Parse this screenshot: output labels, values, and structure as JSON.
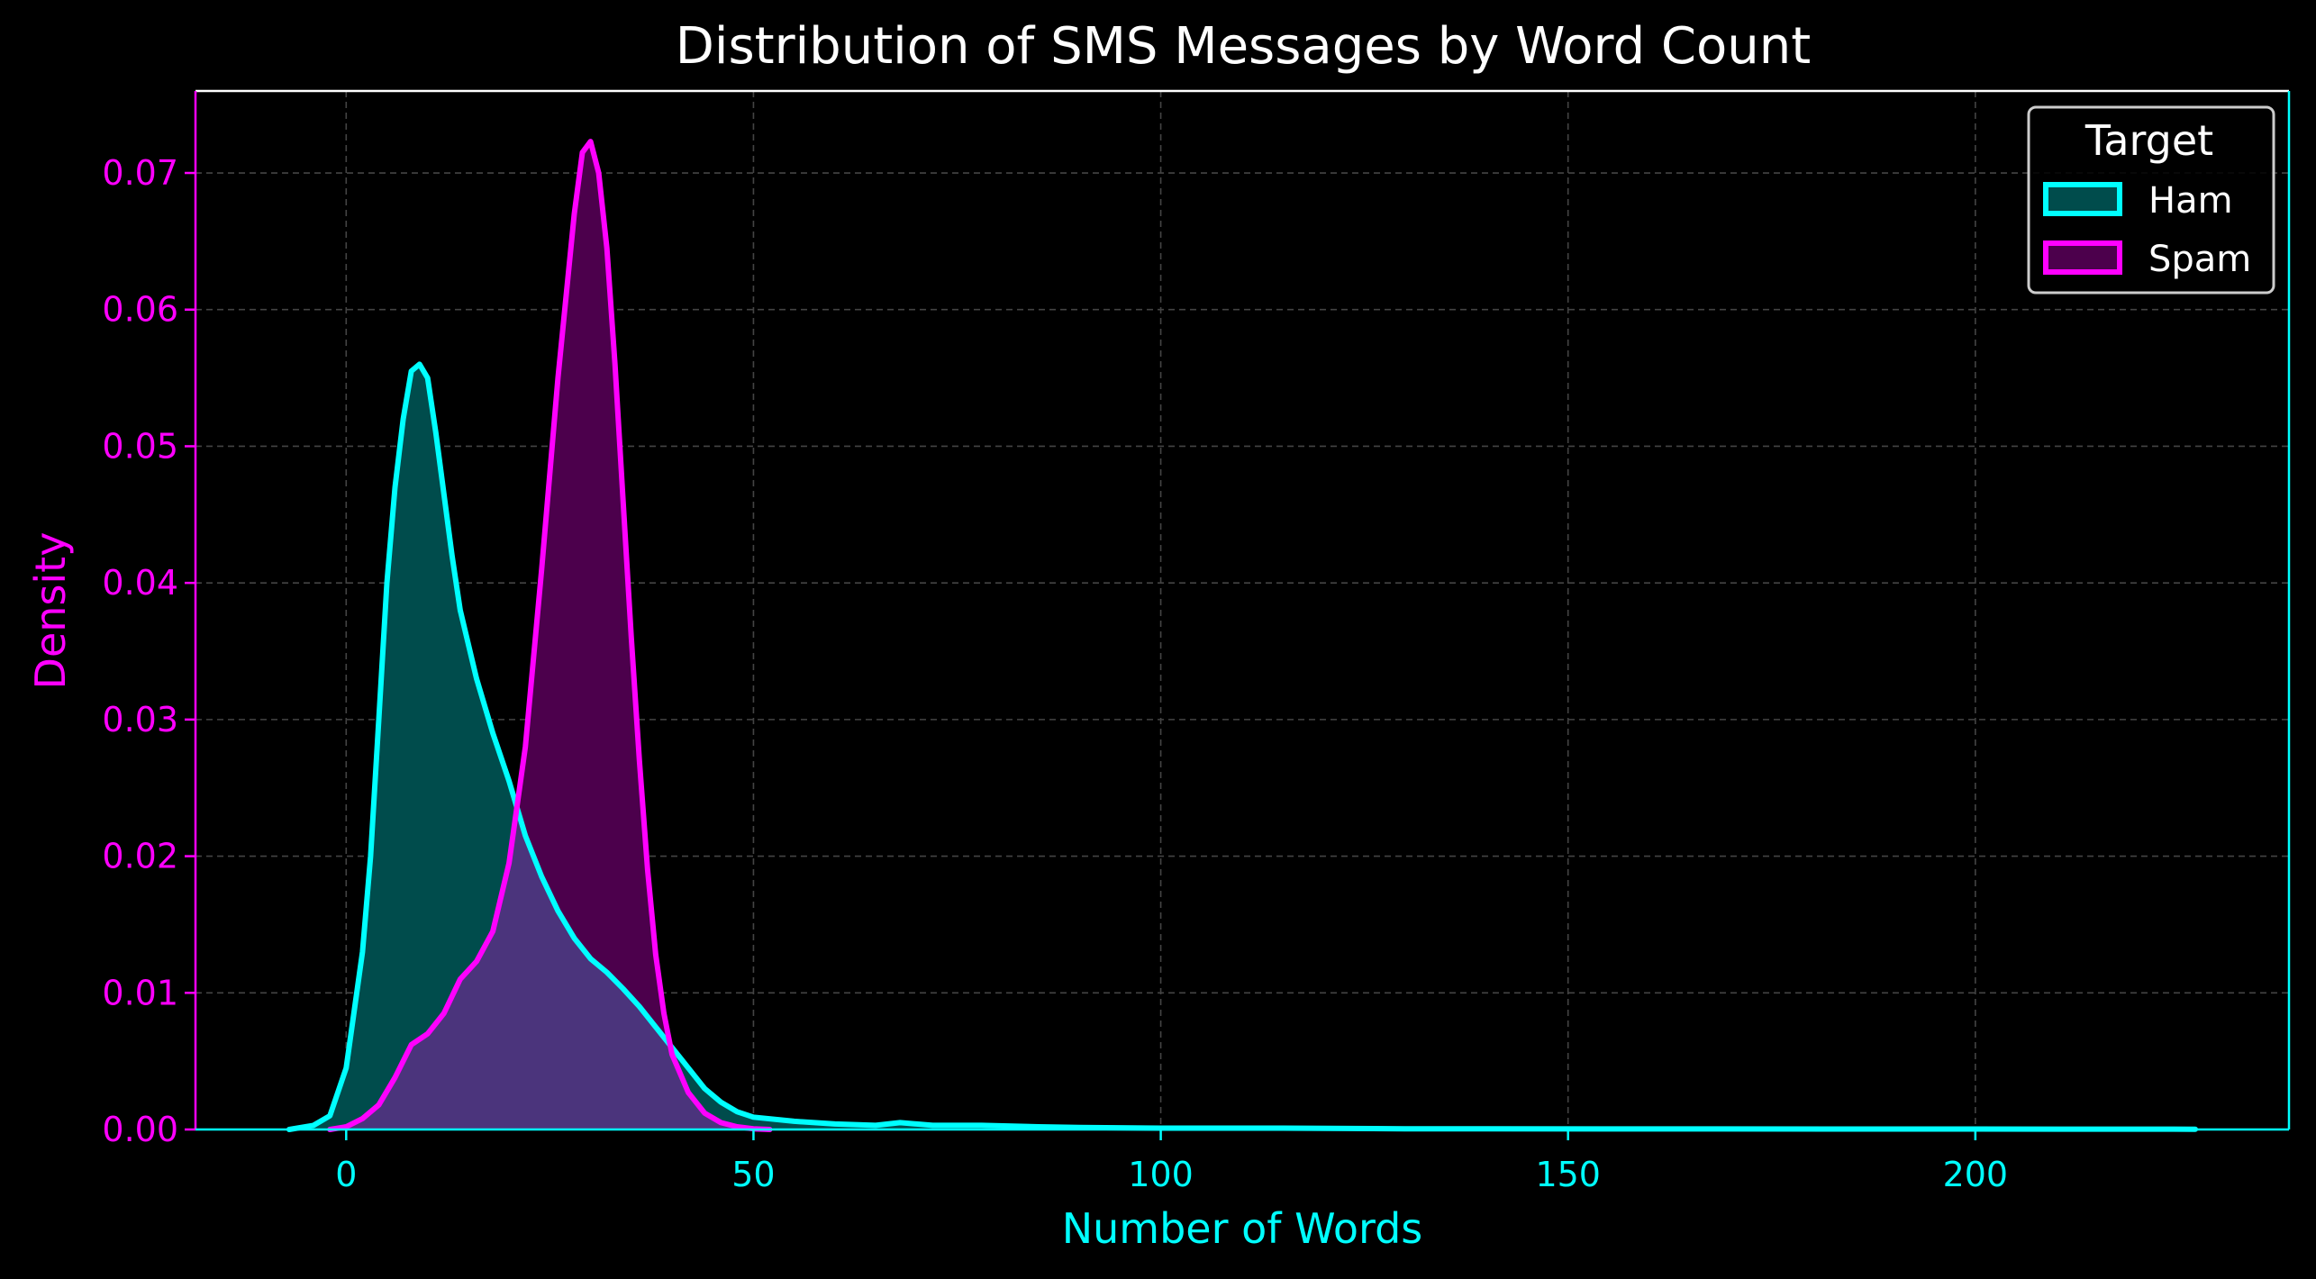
{
  "chart_data": {
    "type": "area",
    "title": "Distribution of SMS Messages by Word Count",
    "xlabel": "Number of Words",
    "ylabel": "Density",
    "xlim": [
      -18.5,
      238.5
    ],
    "ylim": [
      0,
      0.076
    ],
    "xticks": [
      0,
      50,
      100,
      150,
      200
    ],
    "yticks": [
      0.0,
      0.01,
      0.02,
      0.03,
      0.04,
      0.05,
      0.06,
      0.07
    ],
    "ytick_labels": [
      "0.00",
      "0.01",
      "0.02",
      "0.03",
      "0.04",
      "0.05",
      "0.06",
      "0.07"
    ],
    "grid": true,
    "legend": {
      "title": "Target",
      "position": "top-right"
    },
    "series": [
      {
        "name": "Ham",
        "color": "#00FFFF",
        "points": [
          [
            -7,
            0
          ],
          [
            -4,
            0.0003
          ],
          [
            -2,
            0.001
          ],
          [
            0,
            0.0045
          ],
          [
            2,
            0.013
          ],
          [
            3,
            0.02
          ],
          [
            4,
            0.03
          ],
          [
            5,
            0.04
          ],
          [
            6,
            0.047
          ],
          [
            7,
            0.052
          ],
          [
            8,
            0.0555
          ],
          [
            9,
            0.056
          ],
          [
            10,
            0.055
          ],
          [
            11,
            0.051
          ],
          [
            12,
            0.0465
          ],
          [
            13,
            0.042
          ],
          [
            14,
            0.038
          ],
          [
            16,
            0.033
          ],
          [
            18,
            0.029
          ],
          [
            20,
            0.0255
          ],
          [
            22,
            0.0215
          ],
          [
            24,
            0.0185
          ],
          [
            26,
            0.016
          ],
          [
            28,
            0.014
          ],
          [
            30,
            0.0125
          ],
          [
            32,
            0.0115
          ],
          [
            34,
            0.0103
          ],
          [
            36,
            0.009
          ],
          [
            38,
            0.0075
          ],
          [
            40,
            0.006
          ],
          [
            42,
            0.0045
          ],
          [
            44,
            0.003
          ],
          [
            46,
            0.002
          ],
          [
            48,
            0.0013
          ],
          [
            50,
            0.0009
          ],
          [
            55,
            0.0006
          ],
          [
            60,
            0.0004
          ],
          [
            65,
            0.0003
          ],
          [
            68,
            0.0005
          ],
          [
            72,
            0.0003
          ],
          [
            78,
            0.0003
          ],
          [
            85,
            0.0002
          ],
          [
            90,
            0.00015
          ],
          [
            100,
            0.0001
          ],
          [
            115,
            0.0001
          ],
          [
            130,
            5e-05
          ],
          [
            160,
            4e-05
          ],
          [
            200,
            3e-05
          ],
          [
            227,
            2e-05
          ]
        ]
      },
      {
        "name": "Spam",
        "color": "#FF00FF",
        "points": [
          [
            -2,
            0
          ],
          [
            0,
            0.0002
          ],
          [
            2,
            0.0008
          ],
          [
            4,
            0.0018
          ],
          [
            6,
            0.0038
          ],
          [
            8,
            0.0062
          ],
          [
            10,
            0.007
          ],
          [
            12,
            0.0085
          ],
          [
            14,
            0.011
          ],
          [
            16,
            0.0123
          ],
          [
            18,
            0.0145
          ],
          [
            20,
            0.0195
          ],
          [
            22,
            0.028
          ],
          [
            24,
            0.041
          ],
          [
            26,
            0.055
          ],
          [
            28,
            0.067
          ],
          [
            29,
            0.0715
          ],
          [
            30,
            0.0723
          ],
          [
            31,
            0.07
          ],
          [
            32,
            0.0645
          ],
          [
            33,
            0.056
          ],
          [
            34,
            0.046
          ],
          [
            35,
            0.036
          ],
          [
            36,
            0.027
          ],
          [
            37,
            0.019
          ],
          [
            38,
            0.0128
          ],
          [
            39,
            0.0085
          ],
          [
            40,
            0.0055
          ],
          [
            42,
            0.0027
          ],
          [
            44,
            0.0012
          ],
          [
            46,
            0.0005
          ],
          [
            48,
            0.0002
          ],
          [
            50,
            5e-05
          ],
          [
            52,
            0
          ]
        ]
      }
    ]
  },
  "colors": {
    "background": "#000000",
    "ham": "#00FFFF",
    "spam": "#FF00FF",
    "ham_fill": "#004C4C",
    "spam_fill": "#4C004C",
    "overlap_fill": "#4B347C",
    "grid": "#444444",
    "title": "#FFFFFF",
    "x_axis_text": "#00FFFF",
    "y_axis_text": "#FF00FF"
  }
}
